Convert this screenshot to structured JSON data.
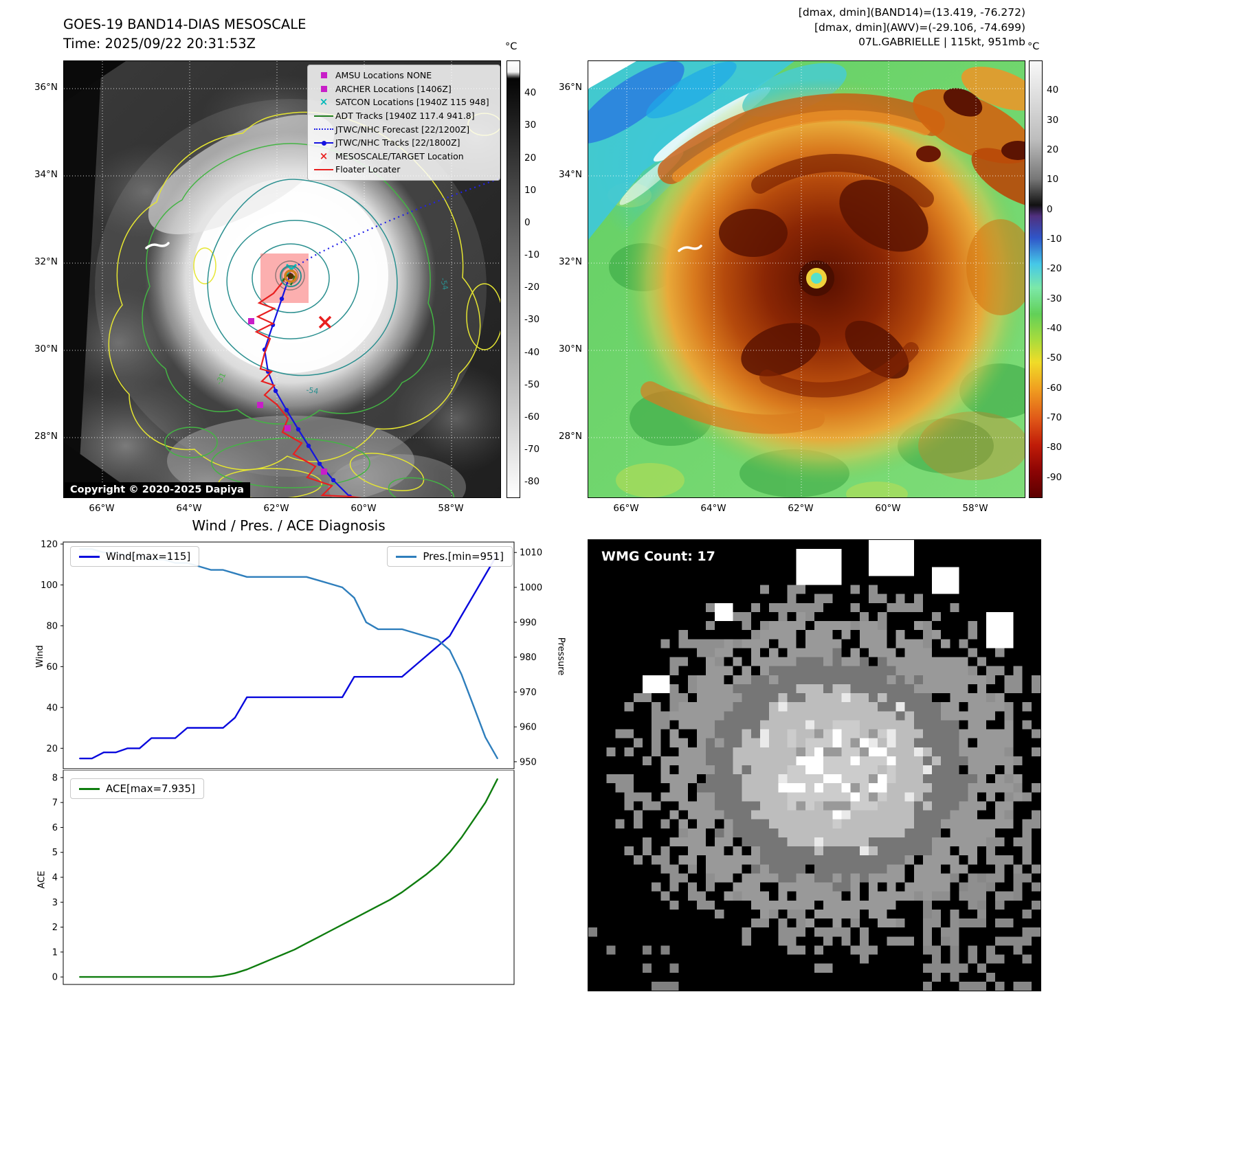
{
  "tl": {
    "title": "GOES-19 BAND14-DIAS MESOSCALE",
    "time": "Time: 2025/09/22 20:31:53Z",
    "copyright": "Copyright © 2020-2025 Dapiya",
    "legend_items": [
      "AMSU Locations NONE",
      "ARCHER Locations [1406Z]",
      "SATCON Locations [1940Z 115 948]",
      "ADT Tracks [1940Z 117.4 941.8]",
      "JTWC/NHC Forecast [22/1200Z]",
      "JTWC/NHC Tracks [22/1800Z]",
      "MESOSCALE/TARGET Location",
      "Floater Locater"
    ],
    "lat_ticks": [
      "36°N",
      "34°N",
      "32°N",
      "30°N",
      "28°N"
    ],
    "lon_ticks": [
      "66°W",
      "64°W",
      "62°W",
      "60°W",
      "58°W"
    ],
    "colorbar": {
      "unit": "°C",
      "ticks": [
        "40",
        "30",
        "20",
        "10",
        "0",
        "-10",
        "-20",
        "-30",
        "-40",
        "-50",
        "-60",
        "-70",
        "-80"
      ]
    },
    "contour_labels": [
      "-54",
      "-31",
      "-54"
    ]
  },
  "tr": {
    "info1": "[dmax, dmin](BAND14)=(13.419, -76.272)",
    "info2": "[dmax, dmin](AWV)=(-29.106, -74.699)",
    "info3": "07L.GABRIELLE | 115kt, 951mb",
    "lat_ticks": [
      "36°N",
      "34°N",
      "32°N",
      "30°N",
      "28°N"
    ],
    "lon_ticks": [
      "66°W",
      "64°W",
      "62°W",
      "60°W",
      "58°W"
    ],
    "colorbar": {
      "unit": "°C",
      "ticks": [
        "40",
        "30",
        "20",
        "10",
        "0",
        "-10",
        "-20",
        "-30",
        "-40",
        "-50",
        "-60",
        "-70",
        "-80",
        "-90"
      ]
    }
  },
  "bl": {
    "title": "Wind / Pres. / ACE Diagnosis"
  },
  "br": {
    "wmg_label": "WMG Count: 17"
  },
  "colors": {
    "wind": "#0808dd",
    "pressure": "#2e7ebc",
    "ace": "#0f7d0f",
    "track_blue": "#1414e0",
    "track_red": "#e82020",
    "adt_green": "#1f7d1f",
    "marker_magenta": "#c81ec8",
    "marker_cyan": "#00b8b8",
    "contour_yellow": "#e6e632",
    "contour_green": "#44b444",
    "contour_teal": "#2a8f8f"
  },
  "chart_data": [
    {
      "type": "line",
      "title": "Wind / Pres. / ACE Diagnosis",
      "xlim": [
        -1.4,
        36.4
      ],
      "ylim_left": [
        10,
        121
      ],
      "ylim_right": [
        948,
        1013
      ],
      "ylabel_left": "Wind",
      "ylabel_right": "Pressure",
      "yticks_left": [
        20,
        40,
        60,
        80,
        100,
        120
      ],
      "yticks_right": [
        950,
        960,
        970,
        980,
        990,
        1000,
        1010
      ],
      "legend_position": "upper-left / upper-right",
      "grid": false,
      "series": [
        {
          "name": "Wind[max=115]",
          "axis": "left",
          "color": "#0808dd",
          "values": [
            15,
            15,
            18,
            18,
            20,
            20,
            25,
            25,
            25,
            30,
            30,
            30,
            30,
            35,
            45,
            45,
            45,
            45,
            45,
            45,
            45,
            45,
            45,
            55,
            55,
            55,
            55,
            55,
            60,
            65,
            70,
            75,
            85,
            95,
            105,
            115
          ]
        },
        {
          "name": "Pres.[min=951]",
          "axis": "right",
          "color": "#2e7ebc",
          "values": [
            1011,
            1011,
            1010,
            1010,
            1009,
            1009,
            1008,
            1008,
            1007,
            1007,
            1006,
            1005,
            1005,
            1004,
            1003,
            1003,
            1003,
            1003,
            1003,
            1003,
            1002,
            1001,
            1000,
            997,
            990,
            988,
            988,
            988,
            987,
            986,
            985,
            982,
            975,
            966,
            957,
            951
          ]
        }
      ]
    },
    {
      "type": "line",
      "title": "",
      "xlim": [
        -1.4,
        36.4
      ],
      "ylim": [
        -0.3,
        8.3
      ],
      "ylabel": "ACE",
      "yticks": [
        0,
        1,
        2,
        3,
        4,
        5,
        6,
        7,
        8
      ],
      "legend_position": "upper-left",
      "grid": false,
      "series": [
        {
          "name": "ACE[max=7.935]",
          "color": "#0f7d0f",
          "values": [
            0,
            0,
            0,
            0,
            0,
            0,
            0,
            0,
            0,
            0,
            0,
            0,
            0.05,
            0.15,
            0.3,
            0.5,
            0.7,
            0.9,
            1.1,
            1.35,
            1.6,
            1.85,
            2.1,
            2.35,
            2.6,
            2.85,
            3.1,
            3.4,
            3.75,
            4.1,
            4.5,
            5,
            5.6,
            6.3,
            7,
            7.935
          ]
        }
      ]
    }
  ]
}
